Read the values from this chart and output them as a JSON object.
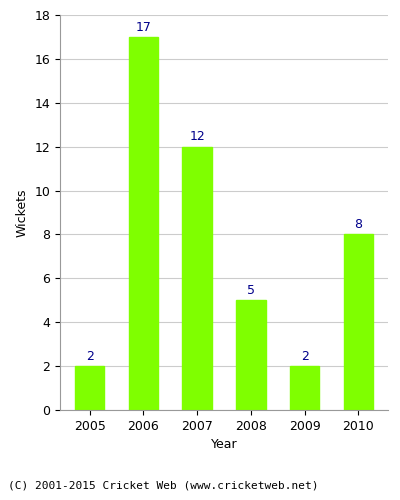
{
  "categories": [
    "2005",
    "2006",
    "2007",
    "2008",
    "2009",
    "2010"
  ],
  "values": [
    2,
    17,
    12,
    5,
    2,
    8
  ],
  "bar_color": "#7FFF00",
  "bar_edgecolor": "#7FFF00",
  "label_color": "#00008B",
  "xlabel": "Year",
  "ylabel": "Wickets",
  "ylim": [
    0,
    18
  ],
  "yticks": [
    0,
    2,
    4,
    6,
    8,
    10,
    12,
    14,
    16,
    18
  ],
  "grid_color": "#cccccc",
  "background_color": "#ffffff",
  "plot_bg_color": "#ffffff",
  "footnote": "(C) 2001-2015 Cricket Web (www.cricketweb.net)",
  "label_fontsize": 9,
  "axis_label_fontsize": 9,
  "tick_fontsize": 9,
  "footnote_fontsize": 8,
  "bar_width": 0.55
}
